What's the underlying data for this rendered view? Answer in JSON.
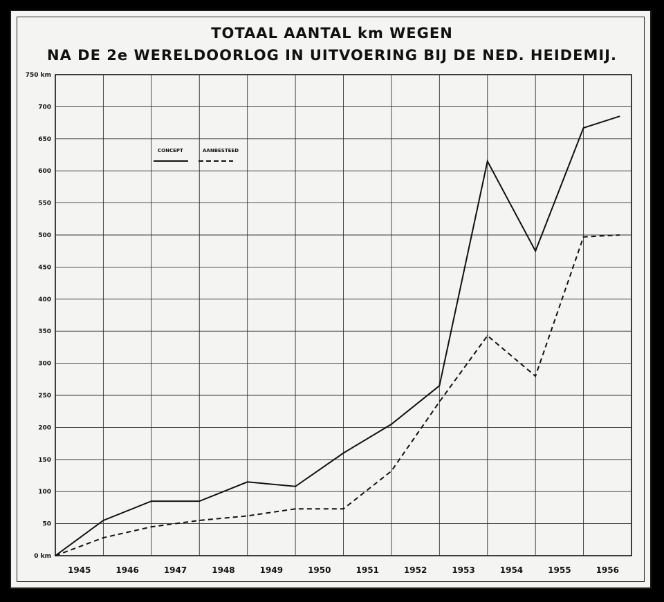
{
  "chart_data": {
    "type": "line",
    "title": "TOTAAL AANTAL km WEGEN",
    "subtitle": "NA DE 2e WERELDOORLOG IN UITVOERING BIJ DE NED. HEIDEMIJ.",
    "xlabel": "",
    "ylabel": "",
    "categories": [
      "1945",
      "1946",
      "1947",
      "1948",
      "1949",
      "1950",
      "1951",
      "1952",
      "1953",
      "1954",
      "1955",
      "1956"
    ],
    "y_ticks": [
      "0 km",
      "50",
      "100",
      "150",
      "200",
      "250",
      "300",
      "350",
      "400",
      "450",
      "500",
      "550",
      "600",
      "650",
      "700",
      "750 km"
    ],
    "ylim": [
      0,
      750
    ],
    "grid": true,
    "legend_position": "top-left",
    "series": [
      {
        "name": "CONCEPT",
        "style": "solid",
        "x": [
          0,
          1,
          2,
          3,
          4,
          5,
          6,
          7,
          8,
          9,
          10,
          11,
          11.75
        ],
        "values": [
          0,
          55,
          85,
          85,
          115,
          108,
          160,
          205,
          265,
          615,
          475,
          667,
          685
        ]
      },
      {
        "name": "AANBESTEED",
        "style": "dashed",
        "x": [
          0,
          1,
          2,
          3,
          4,
          5,
          6,
          7,
          8,
          9,
          10,
          11,
          11.75
        ],
        "values": [
          0,
          28,
          45,
          55,
          62,
          73,
          73,
          132,
          240,
          343,
          280,
          497,
          500
        ]
      }
    ]
  }
}
